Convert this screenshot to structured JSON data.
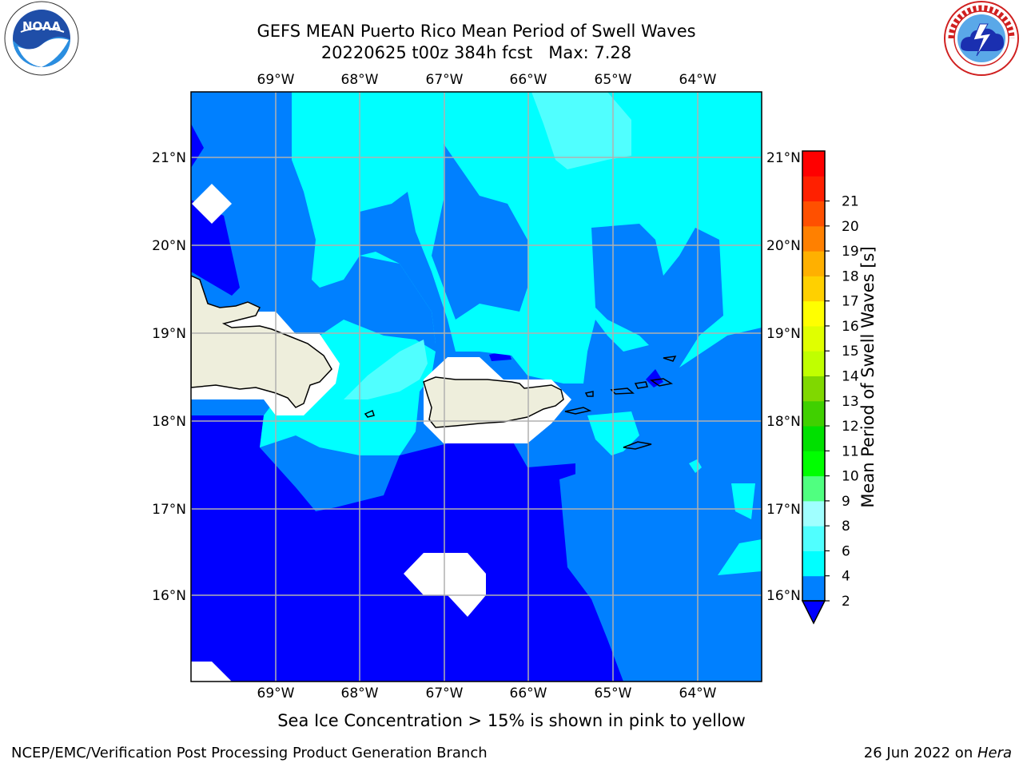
{
  "header": {
    "title_line1": "GEFS MEAN Puerto Rico Mean Period of Swell Waves",
    "title_line2": "20220625 t00z 384h fcst   Max: 7.28"
  },
  "logos": {
    "left": {
      "name": "noaa-logo",
      "text": "NOAA",
      "ring_text": "NATIONAL OCEANIC AND ATMOSPHERIC ADMINISTRATION · U.S. DEPARTMENT OF COMMERCE"
    },
    "right": {
      "name": "nws-logo",
      "ring_text": "NATIONAL WEATHER SERVICE"
    }
  },
  "map": {
    "lon_labels": [
      "69°W",
      "68°W",
      "67°W",
      "66°W",
      "65°W",
      "64°W"
    ],
    "lat_labels": [
      "21°N",
      "20°N",
      "19°N",
      "18°N",
      "17°N",
      "16°N"
    ],
    "colors": {
      "band_0_2": "#0000ff",
      "band_2_4": "#0080ff",
      "band_4_6": "#00ffff",
      "band_6_8": "#50ffff",
      "land": "#eeeedc",
      "no_data": "#ffffff",
      "grid": "#b0b0b0"
    }
  },
  "colorbar": {
    "label": "Mean Period of Swell Waves [s]",
    "ticks": [
      "2",
      "4",
      "6",
      "8",
      "9",
      "10",
      "11",
      "12",
      "13",
      "14",
      "15",
      "16",
      "17",
      "18",
      "19",
      "20",
      "21"
    ],
    "colors": [
      "#0080ff",
      "#00ffff",
      "#50ffff",
      "#a0ffff",
      "#50ff80",
      "#00ff00",
      "#00e000",
      "#40d000",
      "#80d800",
      "#c0ff00",
      "#e0ff00",
      "#ffff00",
      "#ffd000",
      "#ffb000",
      "#ff8000",
      "#ff5000",
      "#ff2000",
      "#ff0000"
    ],
    "under_color": "#0000ff"
  },
  "caption": "Sea Ice Concentration > 15% is shown in pink to yellow",
  "footer": {
    "left": "NCEP/EMC/Verification Post Processing Product Generation Branch",
    "right_prefix": "26 Jun 2022 on ",
    "right_machine": "Hera"
  }
}
